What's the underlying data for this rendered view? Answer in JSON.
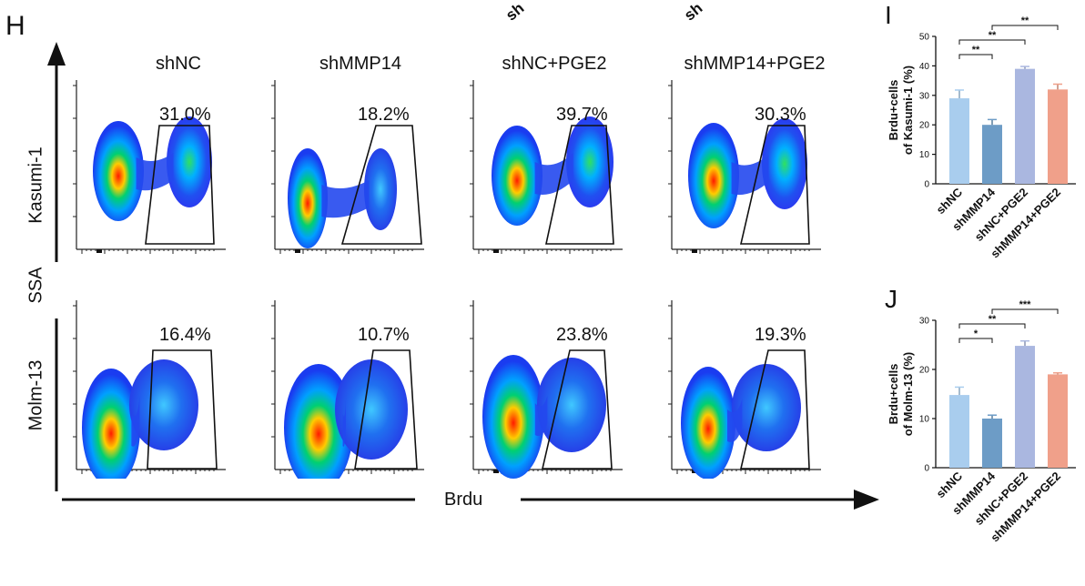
{
  "panel_h": {
    "label": "H",
    "columns": [
      "shNC",
      "shMMP14",
      "shNC+PGE2",
      "shMMP14+PGE2"
    ],
    "rows": [
      "Kasumi-1",
      "Molm-13"
    ],
    "y_axis_label": "SSA",
    "x_axis_label": "Brdu",
    "top_fragments": [
      "sh",
      "sh"
    ],
    "percentages": [
      [
        "31.0%",
        "18.2%",
        "39.7%",
        "30.3%"
      ],
      [
        "16.4%",
        "10.7%",
        "23.8%",
        "19.3%"
      ]
    ],
    "colors": {
      "density_low": "#1a3cf0",
      "density_mid": "#00d070",
      "density_high": "#ff1a00"
    }
  },
  "chart_data": [
    {
      "panel": "I",
      "type": "bar",
      "categories": [
        "shNC",
        "shMMP14",
        "shNC+PGE2",
        "shMMP14+PGE2"
      ],
      "values": [
        29,
        20,
        39,
        32
      ],
      "errors": [
        2.8,
        1.8,
        0.8,
        1.8
      ],
      "colors": [
        "#a9cdee",
        "#6d9cc6",
        "#aab7e0",
        "#f0a08a"
      ],
      "ylabel": "Brdu+cells\nof Kasumi-1 (%)",
      "ylim": [
        0,
        50
      ],
      "yticks": [
        "0",
        "10",
        "20",
        "30",
        "40",
        "50"
      ],
      "significance": [
        {
          "from": 0,
          "to": 1,
          "label": "**",
          "level": 1
        },
        {
          "from": 0,
          "to": 2,
          "label": "**",
          "level": 2
        },
        {
          "from": 1,
          "to": 3,
          "label": "**",
          "level": 3
        }
      ]
    },
    {
      "panel": "J",
      "type": "bar",
      "categories": [
        "shNC",
        "shMMP14",
        "shNC+PGE2",
        "shMMP14+PGE2"
      ],
      "values": [
        14.8,
        10,
        24.8,
        19
      ],
      "errors": [
        1.6,
        0.7,
        1.0,
        0.3
      ],
      "colors": [
        "#a9cdee",
        "#6d9cc6",
        "#aab7e0",
        "#f0a08a"
      ],
      "ylabel": "Brdu+cells\nof Molm-13 (%)",
      "ylim": [
        0,
        30
      ],
      "yticks": [
        "0",
        "10",
        "20",
        "30"
      ],
      "significance": [
        {
          "from": 0,
          "to": 1,
          "label": "*",
          "level": 1
        },
        {
          "from": 0,
          "to": 2,
          "label": "**",
          "level": 2
        },
        {
          "from": 1,
          "to": 3,
          "label": "***",
          "level": 3
        }
      ]
    }
  ]
}
